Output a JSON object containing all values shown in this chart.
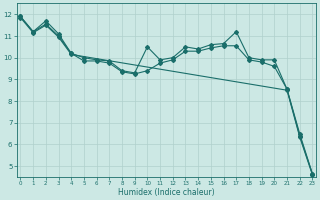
{
  "x_range": [
    -0.3,
    23.3
  ],
  "y_range": [
    4.5,
    12.5
  ],
  "xlabel": "Humidex (Indice chaleur)",
  "background_color": "#cce8e4",
  "grid_color": "#b0d0cc",
  "line_color": "#1a6e6a",
  "series": [
    {
      "x": [
        0,
        1,
        2,
        3,
        4,
        5,
        6,
        7,
        8,
        9,
        10,
        11,
        12,
        13,
        14,
        15,
        16,
        17,
        18,
        19,
        20,
        21,
        22,
        23
      ],
      "y": [
        11.9,
        11.2,
        11.7,
        11.1,
        10.2,
        10.0,
        9.9,
        9.85,
        9.4,
        9.3,
        10.5,
        9.9,
        10.0,
        10.5,
        10.4,
        10.6,
        10.65,
        11.2,
        10.0,
        9.9,
        9.9,
        8.55,
        6.5,
        4.65
      ]
    },
    {
      "x": [
        0,
        1,
        2,
        3,
        4,
        5,
        6,
        7,
        8,
        9,
        10,
        11,
        12,
        13,
        14,
        15,
        16,
        17,
        18,
        19,
        20,
        21,
        22,
        23
      ],
      "y": [
        11.9,
        11.2,
        11.55,
        11.0,
        10.2,
        9.85,
        9.85,
        9.75,
        9.35,
        9.25,
        9.4,
        9.75,
        9.9,
        10.3,
        10.3,
        10.45,
        10.55,
        10.55,
        9.9,
        9.8,
        9.6,
        8.55,
        6.4,
        4.65
      ]
    },
    {
      "x": [
        0,
        1,
        2,
        3,
        4,
        21,
        22,
        23
      ],
      "y": [
        11.85,
        11.15,
        11.5,
        10.95,
        10.15,
        8.5,
        6.35,
        4.6
      ]
    }
  ],
  "yticks": [
    5,
    6,
    7,
    8,
    9,
    10,
    11,
    12
  ],
  "xticks": [
    0,
    1,
    2,
    3,
    4,
    5,
    6,
    7,
    8,
    9,
    10,
    11,
    12,
    13,
    14,
    15,
    16,
    17,
    18,
    19,
    20,
    21,
    22,
    23
  ],
  "xtick_labels": [
    "0",
    "1",
    "2",
    "3",
    "4",
    "5",
    "6",
    "7",
    "8",
    "9",
    "10",
    "11",
    "12",
    "13",
    "14",
    "15",
    "16",
    "17",
    "18",
    "19",
    "20",
    "21",
    "22",
    "23"
  ]
}
